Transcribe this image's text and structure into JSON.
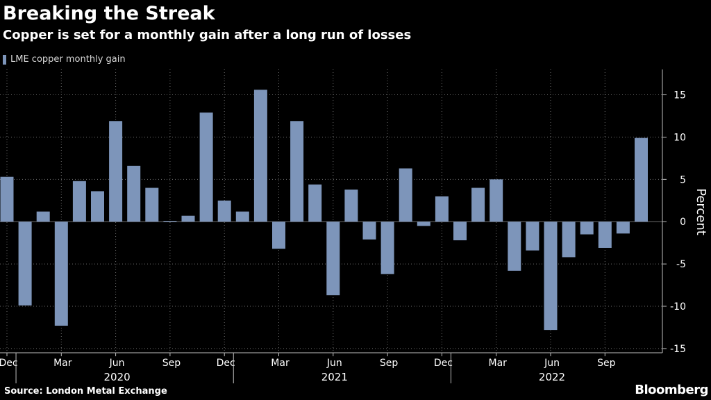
{
  "header": {
    "title": "Breaking the Streak",
    "subtitle": "Copper is set for a monthly gain after a long run of losses"
  },
  "legend": {
    "label": "LME copper monthly gain"
  },
  "footer": {
    "source": "Source: London Metal Exchange",
    "brand": "Bloomberg"
  },
  "colors": {
    "bar": "#7d95ba",
    "grid": "#6e6e6e",
    "axis": "#bfbfbf",
    "background": "#000000"
  },
  "chart_data": {
    "type": "bar",
    "title": "Breaking the Streak",
    "subtitle": "Copper is set for a monthly gain after a long run of losses",
    "xlabel": "",
    "ylabel": "Percent",
    "ylim": [
      -15.5,
      18
    ],
    "yticks": [
      -15,
      -10,
      -5,
      0,
      5,
      10,
      15
    ],
    "grid": true,
    "legend_position": "top-left",
    "y_axis_side": "right",
    "categories": [
      "Dec 2019",
      "Jan 2020",
      "Feb 2020",
      "Mar 2020",
      "Apr 2020",
      "May 2020",
      "Jun 2020",
      "Jul 2020",
      "Aug 2020",
      "Sep 2020",
      "Oct 2020",
      "Nov 2020",
      "Dec 2020",
      "Jan 2021",
      "Feb 2021",
      "Mar 2021",
      "Apr 2021",
      "May 2021",
      "Jun 2021",
      "Jul 2021",
      "Aug 2021",
      "Sep 2021",
      "Oct 2021",
      "Nov 2021",
      "Dec 2021",
      "Jan 2022",
      "Feb 2022",
      "Mar 2022",
      "Apr 2022",
      "May 2022",
      "Jun 2022",
      "Jul 2022",
      "Aug 2022",
      "Sep 2022",
      "Oct 2022",
      "Nov 2022"
    ],
    "series": [
      {
        "name": "LME copper monthly gain",
        "values": [
          5.3,
          -9.9,
          1.2,
          -12.3,
          4.8,
          3.6,
          11.9,
          6.6,
          4.0,
          0.1,
          0.7,
          12.9,
          2.5,
          1.2,
          15.6,
          -3.2,
          11.9,
          4.4,
          -8.7,
          3.8,
          -2.1,
          -6.2,
          6.3,
          -0.5,
          3.0,
          -2.2,
          4.0,
          5.0,
          -5.8,
          -3.4,
          -12.8,
          -4.2,
          -1.5,
          -3.1,
          -1.4,
          9.9
        ]
      }
    ],
    "x_tick_labels": [
      {
        "label": "Dec",
        "index": 0
      },
      {
        "label": "Mar",
        "index": 3
      },
      {
        "label": "Jun",
        "index": 6
      },
      {
        "label": "Sep",
        "index": 9
      },
      {
        "label": "Dec",
        "index": 12
      },
      {
        "label": "Mar",
        "index": 15
      },
      {
        "label": "Jun",
        "index": 18
      },
      {
        "label": "Sep",
        "index": 21
      },
      {
        "label": "Dec",
        "index": 24
      },
      {
        "label": "Mar",
        "index": 27
      },
      {
        "label": "Jun",
        "index": 30
      },
      {
        "label": "Sep",
        "index": 33
      }
    ],
    "year_labels": [
      {
        "label": "2020",
        "index": 6
      },
      {
        "label": "2021",
        "index": 18
      },
      {
        "label": "2022",
        "index": 30
      }
    ],
    "year_separators": [
      1,
      13,
      25
    ]
  }
}
